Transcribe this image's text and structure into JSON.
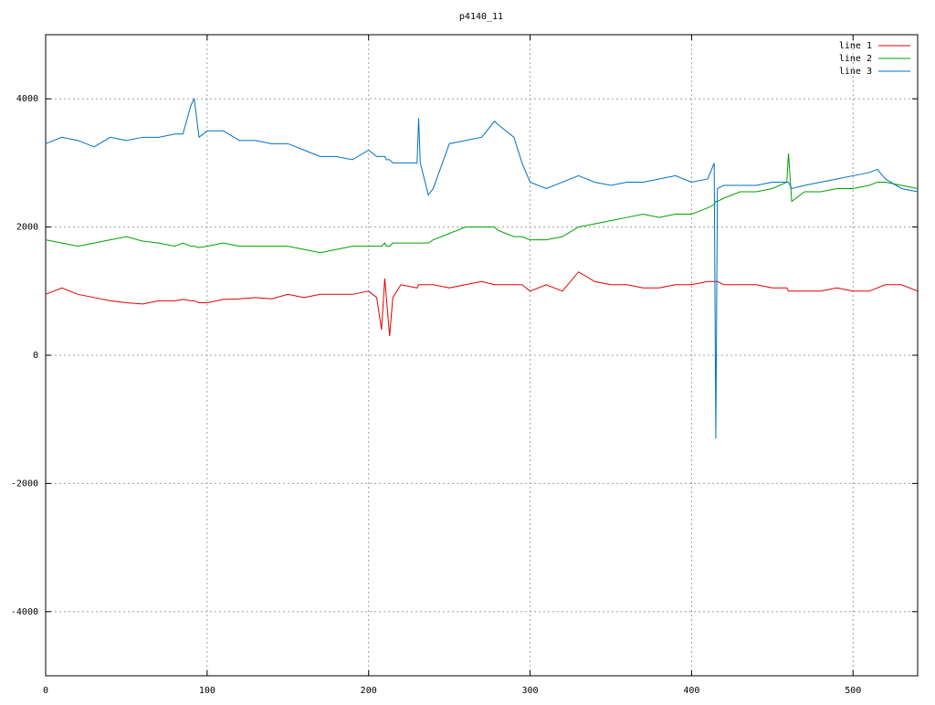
{
  "chart_data": {
    "type": "line",
    "title": "p4140_11",
    "x": [
      0,
      10,
      20,
      30,
      40,
      50,
      60,
      70,
      80,
      85,
      90,
      92,
      95,
      100,
      110,
      120,
      130,
      140,
      150,
      160,
      170,
      180,
      190,
      200,
      205,
      208,
      210,
      211,
      213,
      215,
      220,
      230,
      231,
      232,
      237,
      240,
      250,
      260,
      270,
      278,
      280,
      290,
      295,
      300,
      310,
      320,
      330,
      340,
      350,
      360,
      370,
      380,
      390,
      400,
      410,
      414,
      415,
      416,
      420,
      430,
      440,
      450,
      459,
      460,
      462,
      470,
      480,
      490,
      500,
      510,
      515,
      520,
      530,
      540
    ],
    "series": [
      {
        "name": "line 1",
        "color": "#e00000",
        "values": [
          950,
          1050,
          950,
          900,
          850,
          820,
          800,
          850,
          850,
          870,
          850,
          850,
          820,
          820,
          870,
          880,
          900,
          880,
          950,
          900,
          950,
          950,
          950,
          1000,
          900,
          400,
          1200,
          900,
          300,
          900,
          1100,
          1050,
          1100,
          1100,
          1100,
          1100,
          1050,
          1100,
          1150,
          1100,
          1100,
          1100,
          1100,
          1000,
          1100,
          1000,
          1300,
          1150,
          1100,
          1100,
          1050,
          1050,
          1100,
          1100,
          1150,
          1150,
          1150,
          1150,
          1100,
          1100,
          1100,
          1050,
          1050,
          1000,
          1000,
          1000,
          1000,
          1050,
          1000,
          1000,
          1050,
          1100,
          1100,
          1000
        ]
      },
      {
        "name": "line 2",
        "color": "#00a000",
        "values": [
          1800,
          1750,
          1700,
          1750,
          1800,
          1850,
          1780,
          1750,
          1700,
          1750,
          1700,
          1700,
          1680,
          1700,
          1750,
          1700,
          1700,
          1700,
          1700,
          1650,
          1600,
          1650,
          1700,
          1700,
          1700,
          1700,
          1750,
          1700,
          1700,
          1750,
          1750,
          1750,
          1750,
          1750,
          1750,
          1800,
          1900,
          2000,
          2000,
          2000,
          1950,
          1850,
          1850,
          1800,
          1800,
          1850,
          2000,
          2050,
          2100,
          2150,
          2200,
          2150,
          2200,
          2200,
          2300,
          2350,
          2400,
          2400,
          2450,
          2550,
          2550,
          2600,
          2700,
          3150,
          2400,
          2550,
          2550,
          2600,
          2600,
          2650,
          2700,
          2700,
          2650,
          2600
        ]
      },
      {
        "name": "line 3",
        "color": "#0070c0",
        "values": [
          3300,
          3400,
          3350,
          3250,
          3400,
          3350,
          3400,
          3400,
          3450,
          3450,
          3900,
          4000,
          3400,
          3500,
          3500,
          3350,
          3350,
          3300,
          3300,
          3200,
          3100,
          3100,
          3050,
          3200,
          3100,
          3100,
          3100,
          3050,
          3050,
          3000,
          3000,
          3000,
          3700,
          3000,
          2500,
          2600,
          3300,
          3350,
          3400,
          3650,
          3600,
          3400,
          3000,
          2700,
          2600,
          2700,
          2800,
          2700,
          2650,
          2700,
          2700,
          2750,
          2800,
          2700,
          2750,
          3000,
          -1300,
          2600,
          2650,
          2650,
          2650,
          2700,
          2700,
          2700,
          2600,
          2650,
          2700,
          2750,
          2800,
          2850,
          2900,
          2750,
          2600,
          2550
        ]
      }
    ],
    "xlim": [
      0,
      540
    ],
    "ylim": [
      -5000,
      5000
    ],
    "xticks": [
      0,
      100,
      200,
      300,
      400,
      500
    ],
    "yticks": [
      -4000,
      -2000,
      0,
      2000,
      4000
    ],
    "grid": true,
    "legend": "top-right"
  }
}
